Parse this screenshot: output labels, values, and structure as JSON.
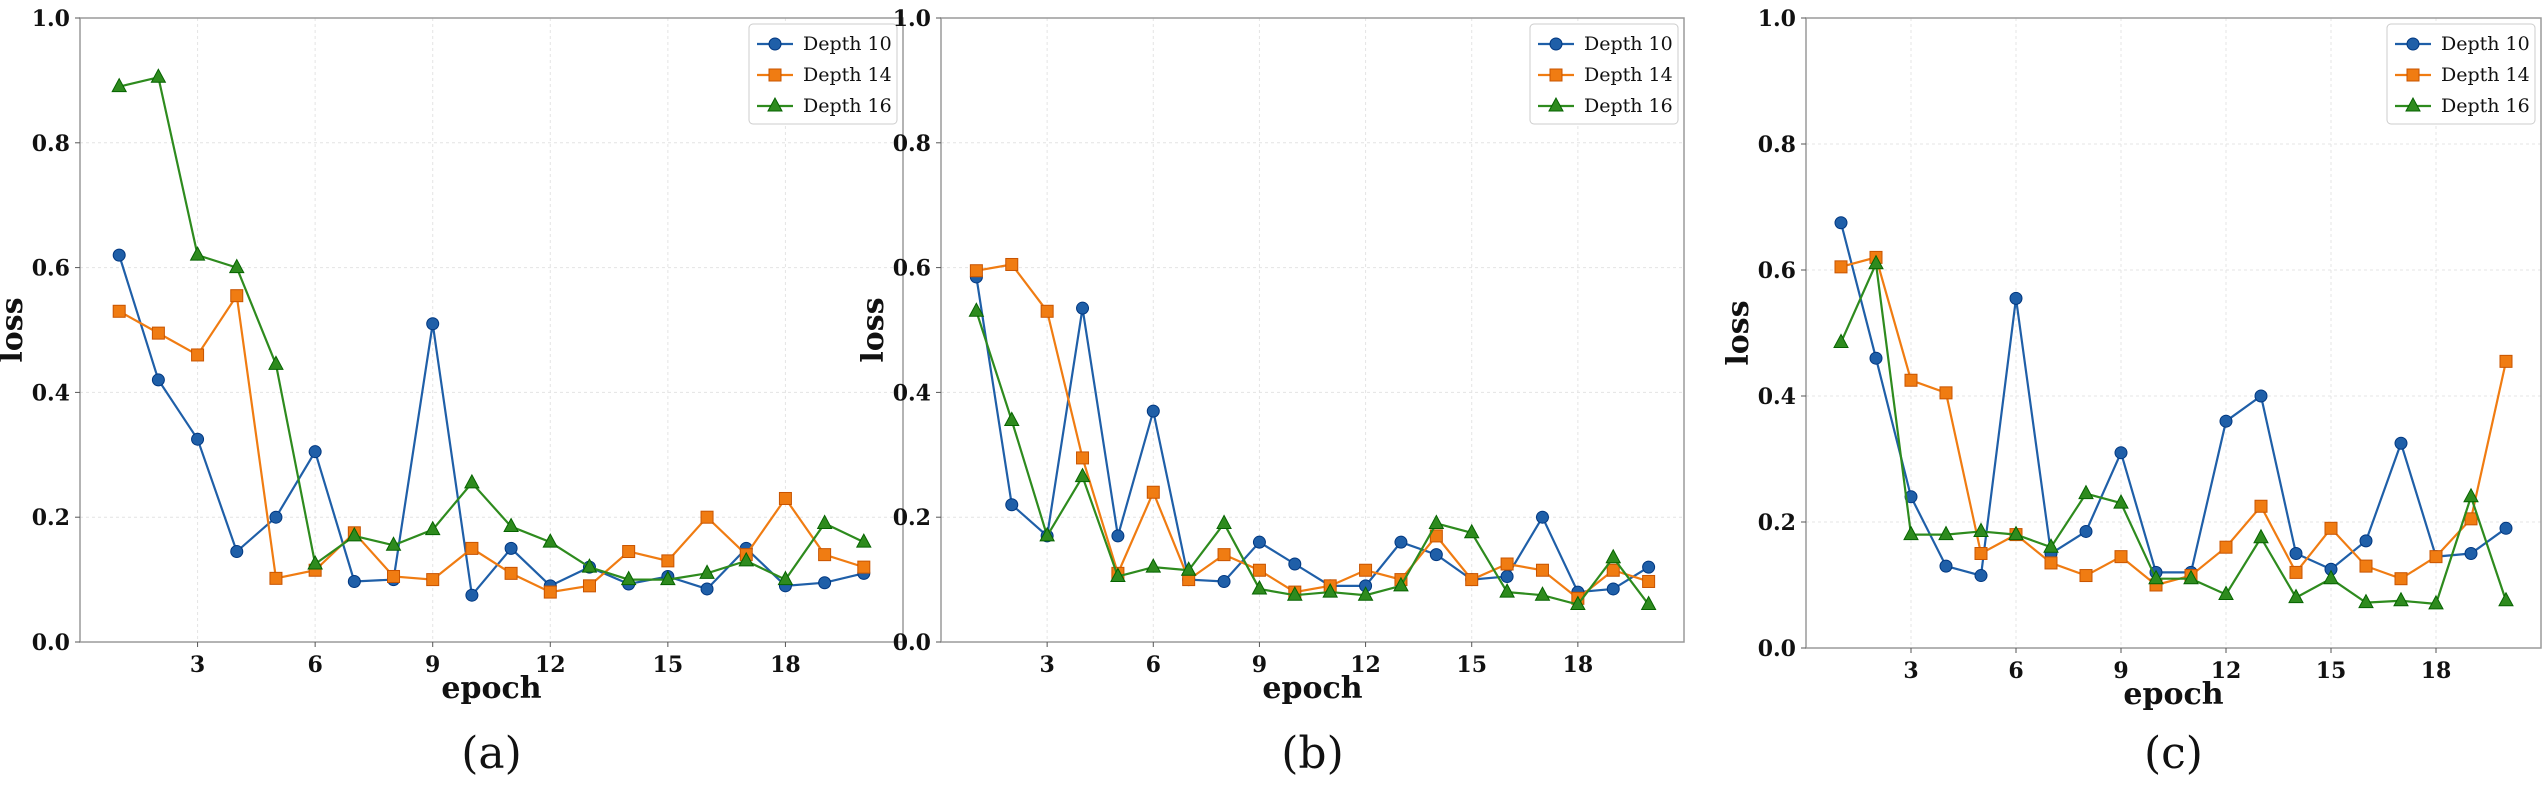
{
  "chart_data": [
    {
      "type": "line",
      "panel_label": "(a)",
      "xlabel": "epoch",
      "ylabel": "loss",
      "xticks": [
        3,
        6,
        9,
        12,
        15,
        18
      ],
      "yticks": [
        "0.0",
        "0.2",
        "0.4",
        "0.6",
        "0.8",
        "1.0"
      ],
      "xlim": [
        0,
        21
      ],
      "ylim": [
        0,
        1.0
      ],
      "grid": true,
      "legend_position": "top-right",
      "x": [
        1,
        2,
        3,
        4,
        5,
        6,
        7,
        8,
        9,
        10,
        11,
        12,
        13,
        14,
        15,
        16,
        17,
        18,
        19,
        20
      ],
      "series": [
        {
          "name": "Depth 10",
          "color": "#1f5fa8",
          "marker": "circle",
          "values": [
            0.62,
            0.42,
            0.325,
            0.145,
            0.2,
            0.305,
            0.097,
            0.1,
            0.51,
            0.075,
            0.15,
            0.09,
            0.12,
            0.093,
            0.105,
            0.085,
            0.15,
            0.09,
            0.095,
            0.11
          ]
        },
        {
          "name": "Depth 14",
          "color": "#f07c12",
          "marker": "square",
          "values": [
            0.53,
            0.495,
            0.46,
            0.555,
            0.102,
            0.115,
            0.175,
            0.105,
            0.1,
            0.15,
            0.11,
            0.08,
            0.09,
            0.145,
            0.13,
            0.2,
            0.14,
            0.23,
            0.14,
            0.12
          ]
        },
        {
          "name": "Depth 16",
          "color": "#2e8b1e",
          "marker": "triangle",
          "values": [
            0.89,
            0.905,
            0.62,
            0.6,
            0.445,
            0.125,
            0.17,
            0.155,
            0.18,
            0.255,
            0.185,
            0.16,
            0.12,
            0.1,
            0.1,
            0.11,
            0.13,
            0.1,
            0.19,
            0.16
          ]
        }
      ]
    },
    {
      "type": "line",
      "panel_label": "(b)",
      "xlabel": "epoch",
      "ylabel": "loss",
      "xticks": [
        3,
        6,
        9,
        12,
        15,
        18
      ],
      "yticks": [
        "0.0",
        "0.2",
        "0.4",
        "0.6",
        "0.8",
        "1.0"
      ],
      "xlim": [
        0,
        21
      ],
      "ylim": [
        0,
        1.0
      ],
      "grid": true,
      "legend_position": "top-right",
      "x": [
        1,
        2,
        3,
        4,
        5,
        6,
        7,
        8,
        9,
        10,
        11,
        12,
        13,
        14,
        15,
        16,
        17,
        18,
        19,
        20
      ],
      "series": [
        {
          "name": "Depth 10",
          "color": "#1f5fa8",
          "marker": "circle",
          "values": [
            0.585,
            0.22,
            0.17,
            0.535,
            0.17,
            0.37,
            0.1,
            0.097,
            0.16,
            0.125,
            0.09,
            0.09,
            0.16,
            0.14,
            0.1,
            0.105,
            0.2,
            0.08,
            0.085,
            0.12
          ]
        },
        {
          "name": "Depth 14",
          "color": "#f07c12",
          "marker": "square",
          "values": [
            0.595,
            0.605,
            0.53,
            0.295,
            0.11,
            0.24,
            0.1,
            0.14,
            0.115,
            0.08,
            0.09,
            0.115,
            0.1,
            0.17,
            0.1,
            0.125,
            0.115,
            0.07,
            0.115,
            0.097
          ]
        },
        {
          "name": "Depth 16",
          "color": "#2e8b1e",
          "marker": "triangle",
          "values": [
            0.53,
            0.355,
            0.17,
            0.265,
            0.105,
            0.12,
            0.115,
            0.19,
            0.085,
            0.075,
            0.08,
            0.075,
            0.09,
            0.19,
            0.175,
            0.08,
            0.075,
            0.06,
            0.135,
            0.06
          ]
        }
      ]
    },
    {
      "type": "line",
      "panel_label": "(c)",
      "xlabel": "epoch",
      "ylabel": "loss",
      "xticks": [
        3,
        6,
        9,
        12,
        15,
        18
      ],
      "yticks": [
        "0.0",
        "0.2",
        "0.4",
        "0.6",
        "0.8",
        "1.0"
      ],
      "xlim": [
        0,
        21
      ],
      "ylim": [
        0,
        1.0
      ],
      "grid": true,
      "legend_position": "top-right",
      "x": [
        1,
        2,
        3,
        4,
        5,
        6,
        7,
        8,
        9,
        10,
        11,
        12,
        13,
        14,
        15,
        16,
        17,
        18,
        19,
        20
      ],
      "series": [
        {
          "name": "Depth 10",
          "color": "#1f5fa8",
          "marker": "circle",
          "values": [
            0.675,
            0.46,
            0.24,
            0.13,
            0.115,
            0.555,
            0.15,
            0.185,
            0.31,
            0.12,
            0.12,
            0.36,
            0.4,
            0.15,
            0.125,
            0.17,
            0.325,
            0.145,
            0.15,
            0.19
          ]
        },
        {
          "name": "Depth 14",
          "color": "#f07c12",
          "marker": "square",
          "values": [
            0.605,
            0.62,
            0.425,
            0.405,
            0.15,
            0.18,
            0.135,
            0.115,
            0.145,
            0.1,
            0.115,
            0.16,
            0.225,
            0.12,
            0.19,
            0.13,
            0.11,
            0.145,
            0.205,
            0.455
          ]
        },
        {
          "name": "Depth 16",
          "color": "#2e8b1e",
          "marker": "triangle",
          "values": [
            0.485,
            0.61,
            0.18,
            0.18,
            0.185,
            0.18,
            0.16,
            0.245,
            0.23,
            0.11,
            0.11,
            0.085,
            0.175,
            0.08,
            0.11,
            0.072,
            0.075,
            0.07,
            0.24,
            0.075
          ]
        }
      ]
    }
  ]
}
